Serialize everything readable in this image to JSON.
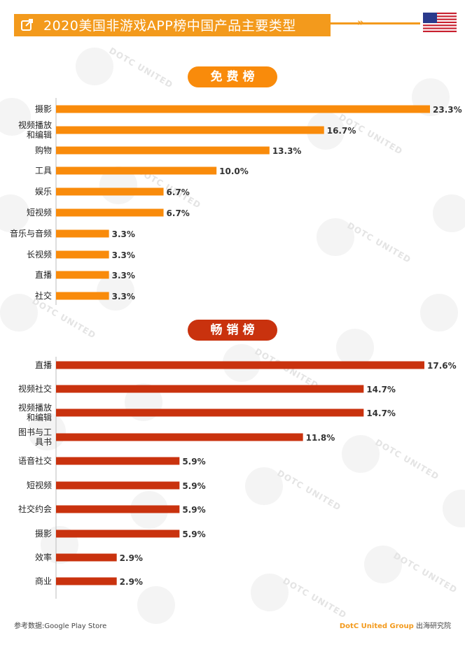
{
  "header": {
    "title": "2020美国非游戏APP榜中国产品主要类型",
    "chevrons": "»",
    "flag_icon": "us-flag-icon",
    "edit_icon": "external-link-icon"
  },
  "colors": {
    "free": "#f98b0b",
    "grossing": "#c9320e",
    "header": "#f39a1c"
  },
  "sections": {
    "free_label": "免费榜",
    "grossing_label": "畅销榜"
  },
  "chart_data": [
    {
      "type": "bar",
      "orientation": "horizontal",
      "title": "免费榜",
      "categories": [
        "摄影",
        "视频播放和编辑",
        "购物",
        "工具",
        "娱乐",
        "短视频",
        "音乐与音频",
        "长视频",
        "直播",
        "社交"
      ],
      "values": [
        23.3,
        16.7,
        13.3,
        10.0,
        6.7,
        6.7,
        3.3,
        3.3,
        3.3,
        3.3
      ],
      "value_labels": [
        "23.3%",
        "16.7%",
        "13.3%",
        "10.0%",
        "6.7%",
        "6.7%",
        "3.3%",
        "3.3%",
        "3.3%",
        "3.3%"
      ],
      "unit": "%",
      "xlim": [
        0,
        23.3
      ],
      "grid": false,
      "legend": "none"
    },
    {
      "type": "bar",
      "orientation": "horizontal",
      "title": "畅销榜",
      "categories": [
        "直播",
        "视频社交",
        "视频播放和编辑",
        "图书与工具书",
        "语音社交",
        "短视频",
        "社交约会",
        "摄影",
        "效率",
        "商业"
      ],
      "values": [
        17.6,
        14.7,
        14.7,
        11.8,
        5.9,
        5.9,
        5.9,
        5.9,
        2.9,
        2.9
      ],
      "value_labels": [
        "17.6%",
        "14.7%",
        "14.7%",
        "11.8%",
        "5.9%",
        "5.9%",
        "5.9%",
        "5.9%",
        "2.9%",
        "2.9%"
      ],
      "unit": "%",
      "xlim": [
        0,
        17.6
      ],
      "grid": false,
      "legend": "none"
    }
  ],
  "footer": {
    "source": "参考数据:Google Play Store",
    "brand": "DotC United Group",
    "brand_suffix": " 出海研究院"
  },
  "watermark_text": "DOTC UNITED"
}
